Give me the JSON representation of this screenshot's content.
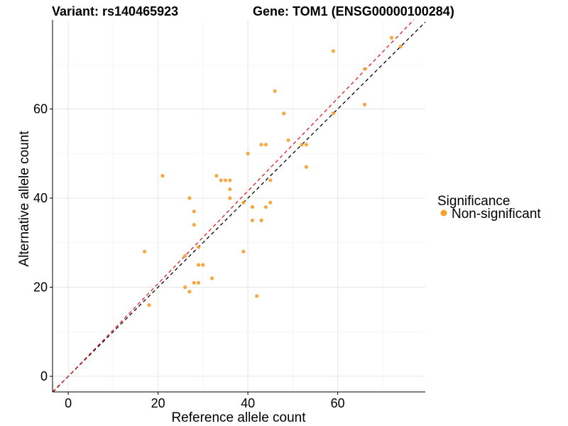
{
  "chart_data": {
    "type": "scatter",
    "title_left": "Variant: rs140465923",
    "title_right": "Gene: TOM1 (ENSG00000100284)",
    "xlabel": "Reference allele count",
    "ylabel": "Alternative allele count",
    "xlim": [
      -3.5,
      79.5
    ],
    "ylim": [
      -3.5,
      80
    ],
    "x_ticks": [
      0,
      20,
      40,
      60
    ],
    "y_ticks": [
      0,
      20,
      40,
      60
    ],
    "x_tick_labels": [
      "0",
      "20",
      "40",
      "60"
    ],
    "y_tick_labels": [
      "0",
      "20",
      "40",
      "60"
    ],
    "grid": true,
    "legend": {
      "title": "Significance",
      "placement": "right",
      "entries": [
        {
          "label": "Non-significant",
          "color": "#F5A02D"
        }
      ]
    },
    "reference_lines": [
      {
        "name": "identity",
        "slope": 1.0,
        "intercept": 0,
        "color": "#000000",
        "style": "dashed"
      },
      {
        "name": "fit",
        "slope": 1.04,
        "intercept": 0,
        "color": "#E41A1C",
        "style": "dashed"
      }
    ],
    "series": [
      {
        "name": "Non-significant",
        "color": "#F5A02D",
        "points": [
          [
            17,
            28
          ],
          [
            18,
            16
          ],
          [
            21,
            45
          ],
          [
            26,
            27
          ],
          [
            26,
            20
          ],
          [
            27,
            19
          ],
          [
            27,
            40
          ],
          [
            28,
            37
          ],
          [
            28,
            34
          ],
          [
            28,
            21
          ],
          [
            29,
            25
          ],
          [
            29,
            21
          ],
          [
            29,
            29
          ],
          [
            30,
            25
          ],
          [
            32,
            22
          ],
          [
            33,
            45
          ],
          [
            34,
            44
          ],
          [
            35,
            44
          ],
          [
            36,
            44
          ],
          [
            36,
            42
          ],
          [
            36,
            40
          ],
          [
            39,
            39
          ],
          [
            39,
            28
          ],
          [
            40,
            50
          ],
          [
            41,
            38
          ],
          [
            41,
            35
          ],
          [
            42,
            18
          ],
          [
            43,
            52
          ],
          [
            43,
            35
          ],
          [
            44,
            52
          ],
          [
            44,
            38
          ],
          [
            45,
            44
          ],
          [
            45,
            39
          ],
          [
            46,
            64
          ],
          [
            48,
            59
          ],
          [
            49,
            53
          ],
          [
            52,
            52
          ],
          [
            53,
            52
          ],
          [
            53,
            47
          ],
          [
            59,
            73
          ],
          [
            59,
            59
          ],
          [
            66,
            69
          ],
          [
            66,
            61
          ],
          [
            72,
            76
          ],
          [
            74,
            74
          ]
        ]
      }
    ]
  }
}
